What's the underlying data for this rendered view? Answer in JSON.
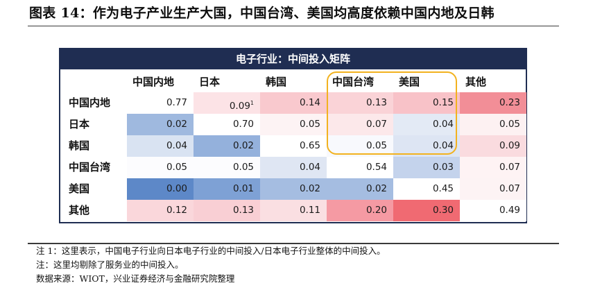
{
  "figure": {
    "title": "图表 14：作为电子产业生产大国，中国台湾、美国均高度依赖中国内地及日韩"
  },
  "chart_data": {
    "type": "heatmap",
    "title": "电子行业：中间投入矩阵",
    "columns": [
      "中国内地",
      "日本",
      "韩国",
      "中国台湾",
      "美国",
      "其他"
    ],
    "rows": [
      "中国内地",
      "日本",
      "韩国",
      "中国台湾",
      "美国",
      "其他"
    ],
    "values": [
      [
        0.77,
        0.09,
        0.14,
        0.13,
        0.15,
        0.23
      ],
      [
        0.02,
        0.7,
        0.05,
        0.07,
        0.04,
        0.05
      ],
      [
        0.04,
        0.02,
        0.65,
        0.05,
        0.04,
        0.09
      ],
      [
        0.05,
        0.05,
        0.04,
        0.54,
        0.03,
        0.07
      ],
      [
        0.0,
        0.01,
        0.02,
        0.02,
        0.45,
        0.07
      ],
      [
        0.12,
        0.13,
        0.11,
        0.2,
        0.3,
        0.49
      ]
    ],
    "value_labels": [
      [
        "0.77",
        "0.09",
        "0.14",
        "0.13",
        "0.15",
        "0.23"
      ],
      [
        "0.02",
        "0.70",
        "0.05",
        "0.07",
        "0.04",
        "0.05"
      ],
      [
        "0.04",
        "0.02",
        "0.65",
        "0.05",
        "0.04",
        "0.09"
      ],
      [
        "0.05",
        "0.05",
        "0.04",
        "0.54",
        "0.03",
        "0.07"
      ],
      [
        "0.00",
        "0.01",
        "0.02",
        "0.02",
        "0.45",
        "0.07"
      ],
      [
        "0.12",
        "0.13",
        "0.11",
        "0.20",
        "0.30",
        "0.49"
      ]
    ],
    "footnote_marker": {
      "row": 0,
      "col": 1,
      "text": "1"
    },
    "highlight": {
      "rows": [
        0,
        2
      ],
      "cols": [
        3,
        4
      ],
      "color": "#f2b21f"
    },
    "cell_colors": [
      [
        "#ffffff",
        "#fce3e6",
        "#f9c9ce",
        "#fad3d7",
        "#f8c2c8",
        "#f28e97"
      ],
      [
        "#9fb9df",
        "#ffffff",
        "#fdf3f4",
        "#fce8ea",
        "#e3eaf5",
        "#fdf1f2"
      ],
      [
        "#d9e3f2",
        "#94b1dc",
        "#ffffff",
        "#f8f9fd",
        "#dde5f3",
        "#fadbdf"
      ],
      [
        "#fcfcfe",
        "#fcfcfe",
        "#dfe6f3",
        "#ffffff",
        "#c4d3ec",
        "#fef3f4"
      ],
      [
        "#5d88c8",
        "#7ea1d5",
        "#a5bde1",
        "#a5bde1",
        "#ffffff",
        "#fdf3f4"
      ],
      [
        "#fad7db",
        "#f9cfd4",
        "#fadfe2",
        "#f59aa3",
        "#f06a72",
        "#ffffff"
      ]
    ],
    "header_color": "#1f2d52"
  },
  "notes": [
    "注 1：这里表示，中国电子行业向日本电子行业的中间投入/日本电子行业整体的中间投入。",
    "注：这里均剔除了服务业的中间投入。",
    "数据来源：WIOT，兴业证券经济与金融研究院整理"
  ]
}
